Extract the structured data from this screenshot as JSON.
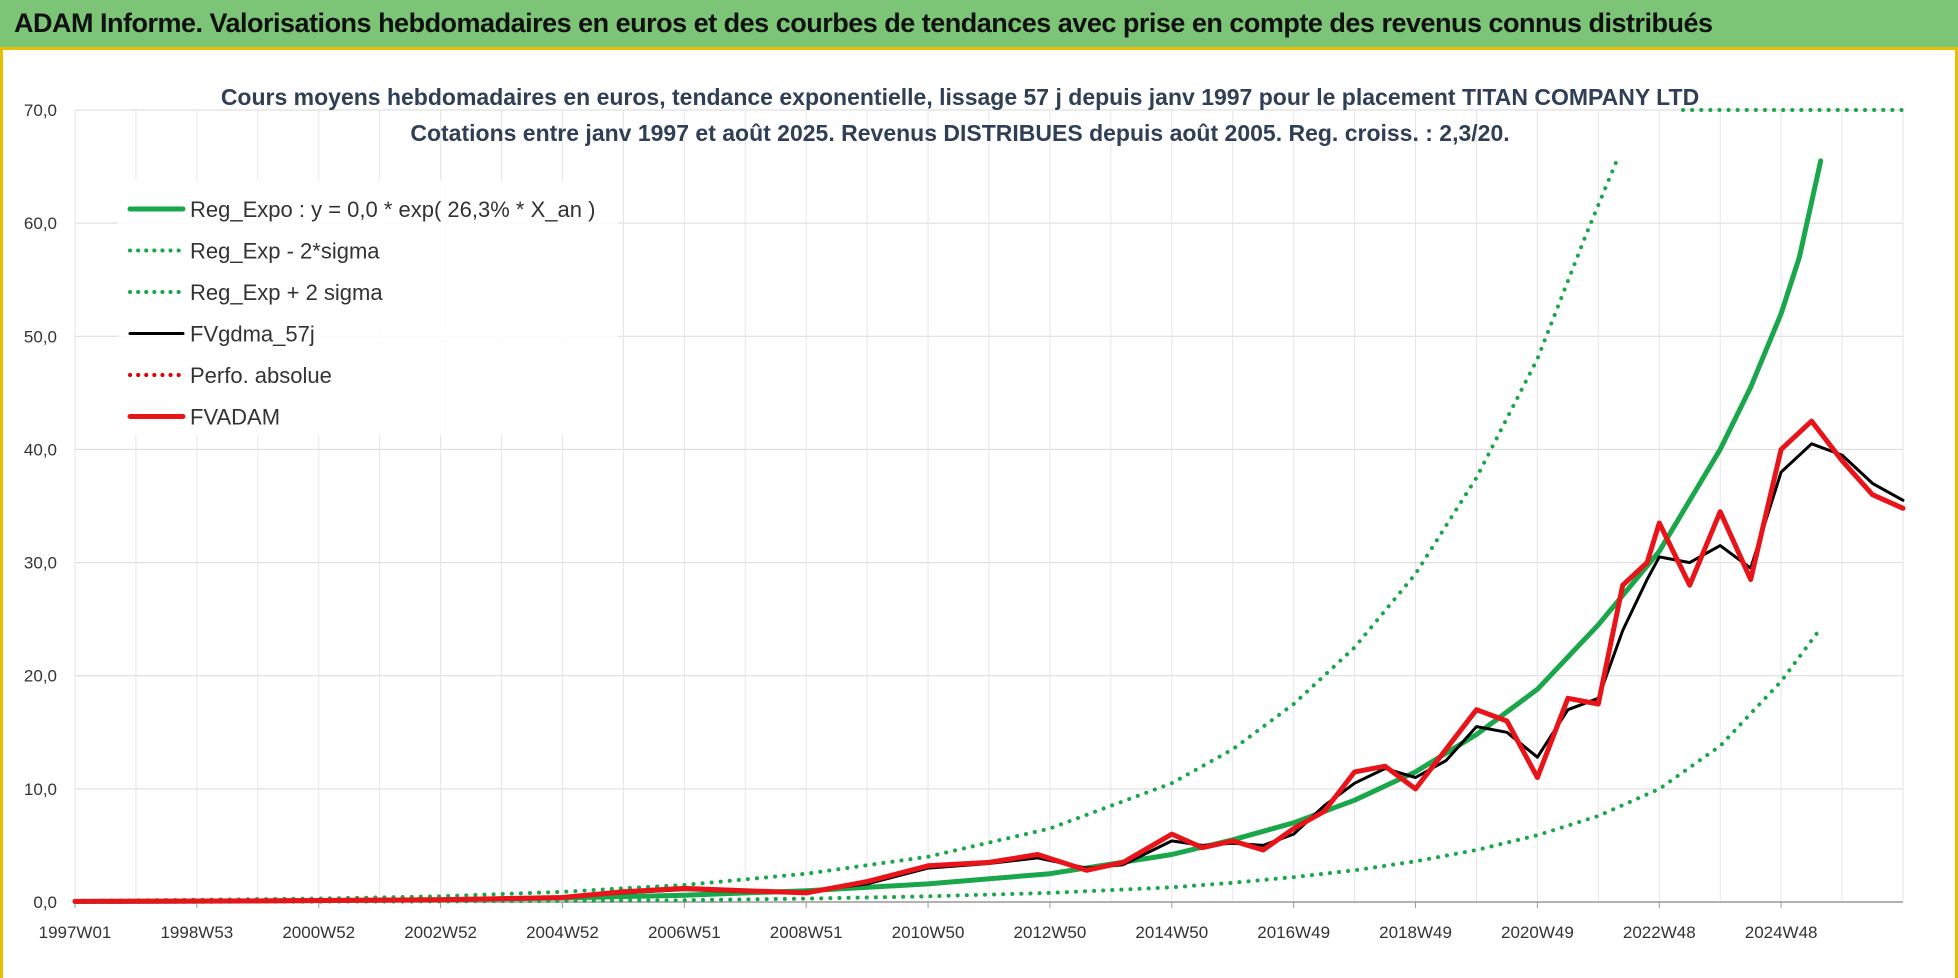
{
  "header": {
    "title": "ADAM Informe. Valorisations hebdomadaires en euros et des courbes de tendances avec prise en compte des revenus connus distribués"
  },
  "chart_data": {
    "type": "line",
    "title_line1": "Cours moyens hebdomadaires en euros, tendance exponentielle, lissage 57 j depuis janv 1997 pour le placement TITAN COMPANY LTD",
    "title_line2": "Cotations entre janv 1997 et août 2025. Revenus DISTRIBUES depuis août 2005. Reg. croiss. : 2,3/20.",
    "xlabel": "",
    "ylabel": "",
    "x_range": [
      1997.0,
      2025.65
    ],
    "ylim": [
      0,
      70
    ],
    "y_ticks": [
      "0,0",
      "10,0",
      "20,0",
      "30,0",
      "40,0",
      "50,0",
      "60,0",
      "70,0"
    ],
    "x_ticks": [
      {
        "label": "1997W01",
        "x": 1997.0
      },
      {
        "label": "1998W53",
        "x": 1999.0
      },
      {
        "label": "2000W52",
        "x": 2001.0
      },
      {
        "label": "2002W52",
        "x": 2003.0
      },
      {
        "label": "2004W52",
        "x": 2005.0
      },
      {
        "label": "2006W51",
        "x": 2007.0
      },
      {
        "label": "2008W51",
        "x": 2009.0
      },
      {
        "label": "2010W50",
        "x": 2011.0
      },
      {
        "label": "2012W50",
        "x": 2013.0
      },
      {
        "label": "2014W50",
        "x": 2015.0
      },
      {
        "label": "2016W49",
        "x": 2017.0
      },
      {
        "label": "2018W49",
        "x": 2019.0
      },
      {
        "label": "2020W49",
        "x": 2021.0
      },
      {
        "label": "2022W48",
        "x": 2023.0
      },
      {
        "label": "2024W48",
        "x": 2025.0
      }
    ],
    "grid": true,
    "legend_position": "top-left",
    "series": [
      {
        "name": "Reg_Expo : y = 0,0 * exp( 26,3% *  X_an )",
        "color": "#1aa64a",
        "style": "solid-thick",
        "points": [
          [
            1997.0,
            0.04
          ],
          [
            2000.0,
            0.09
          ],
          [
            2003.0,
            0.2
          ],
          [
            2005.0,
            0.35
          ],
          [
            2007.0,
            0.6
          ],
          [
            2009.0,
            1.0
          ],
          [
            2011.0,
            1.6
          ],
          [
            2013.0,
            2.5
          ],
          [
            2015.0,
            4.2
          ],
          [
            2016.0,
            5.5
          ],
          [
            2017.0,
            7.0
          ],
          [
            2018.0,
            9.0
          ],
          [
            2019.0,
            11.5
          ],
          [
            2020.0,
            14.8
          ],
          [
            2021.0,
            18.8
          ],
          [
            2022.0,
            24.5
          ],
          [
            2023.0,
            31.0
          ],
          [
            2024.0,
            40.0
          ],
          [
            2024.5,
            45.5
          ],
          [
            2025.0,
            52.0
          ],
          [
            2025.3,
            57.0
          ],
          [
            2025.65,
            65.5
          ]
        ]
      },
      {
        "name": "Reg_Exp - 2*sigma",
        "color": "#1aa64a",
        "style": "dotted",
        "points": [
          [
            1997.0,
            0.01
          ],
          [
            2003.0,
            0.05
          ],
          [
            2007.0,
            0.15
          ],
          [
            2009.0,
            0.3
          ],
          [
            2011.0,
            0.5
          ],
          [
            2013.0,
            0.8
          ],
          [
            2015.0,
            1.3
          ],
          [
            2016.0,
            1.7
          ],
          [
            2017.0,
            2.2
          ],
          [
            2018.0,
            2.8
          ],
          [
            2019.0,
            3.6
          ],
          [
            2020.0,
            4.6
          ],
          [
            2021.0,
            5.9
          ],
          [
            2022.0,
            7.6
          ],
          [
            2023.0,
            10.0
          ],
          [
            2024.0,
            13.8
          ],
          [
            2025.0,
            19.5
          ],
          [
            2025.65,
            24.2
          ]
        ]
      },
      {
        "name": "Reg_Exp + 2 sigma",
        "color": "#1aa64a",
        "style": "dotted",
        "points": [
          [
            1997.0,
            0.1
          ],
          [
            2001.0,
            0.3
          ],
          [
            2003.0,
            0.5
          ],
          [
            2005.0,
            0.9
          ],
          [
            2007.0,
            1.5
          ],
          [
            2009.0,
            2.5
          ],
          [
            2011.0,
            4.0
          ],
          [
            2013.0,
            6.5
          ],
          [
            2015.0,
            10.5
          ],
          [
            2016.0,
            13.5
          ],
          [
            2017.0,
            17.5
          ],
          [
            2018.0,
            22.5
          ],
          [
            2019.0,
            29.0
          ],
          [
            2020.0,
            37.5
          ],
          [
            2021.0,
            48.0
          ],
          [
            2021.8,
            59.0
          ],
          [
            2022.3,
            65.5
          ]
        ]
      },
      {
        "name": "FVgdma_57j",
        "color": "#000000",
        "style": "solid",
        "points": [
          [
            1997.0,
            0.05
          ],
          [
            2000.0,
            0.1
          ],
          [
            2003.0,
            0.2
          ],
          [
            2005.0,
            0.4
          ],
          [
            2006.0,
            0.8
          ],
          [
            2007.0,
            1.1
          ],
          [
            2008.0,
            0.9
          ],
          [
            2009.0,
            0.9
          ],
          [
            2010.0,
            1.6
          ],
          [
            2011.0,
            3.0
          ],
          [
            2012.0,
            3.4
          ],
          [
            2012.8,
            3.9
          ],
          [
            2013.6,
            3.0
          ],
          [
            2014.2,
            3.3
          ],
          [
            2015.0,
            5.4
          ],
          [
            2015.5,
            5.0
          ],
          [
            2016.0,
            5.2
          ],
          [
            2016.5,
            5.0
          ],
          [
            2017.0,
            6.0
          ],
          [
            2017.5,
            8.5
          ],
          [
            2018.0,
            10.5
          ],
          [
            2018.5,
            11.8
          ],
          [
            2019.0,
            11.0
          ],
          [
            2019.5,
            12.5
          ],
          [
            2020.0,
            15.5
          ],
          [
            2020.5,
            15.0
          ],
          [
            2021.0,
            12.8
          ],
          [
            2021.5,
            17.0
          ],
          [
            2022.0,
            18.0
          ],
          [
            2022.4,
            24.0
          ],
          [
            2022.8,
            28.5
          ],
          [
            2023.0,
            30.5
          ],
          [
            2023.5,
            30.0
          ],
          [
            2024.0,
            31.5
          ],
          [
            2024.5,
            29.5
          ],
          [
            2025.0,
            38.0
          ],
          [
            2025.5,
            40.5
          ],
          [
            2026.0,
            39.5
          ],
          [
            2026.5,
            37.0
          ],
          [
            2027.0,
            35.5
          ]
        ]
      },
      {
        "name": "Perfo. absolue",
        "color": "#e00000",
        "style": "dotted",
        "points": []
      },
      {
        "name": "FVADAM",
        "color": "#e8141a",
        "style": "solid-thick",
        "points": [
          [
            1997.0,
            0.05
          ],
          [
            2000.0,
            0.1
          ],
          [
            2003.0,
            0.2
          ],
          [
            2005.0,
            0.4
          ],
          [
            2006.0,
            0.9
          ],
          [
            2007.0,
            1.2
          ],
          [
            2008.0,
            1.0
          ],
          [
            2009.0,
            0.8
          ],
          [
            2010.0,
            1.8
          ],
          [
            2011.0,
            3.2
          ],
          [
            2012.0,
            3.5
          ],
          [
            2012.8,
            4.2
          ],
          [
            2013.6,
            2.8
          ],
          [
            2014.2,
            3.5
          ],
          [
            2015.0,
            6.0
          ],
          [
            2015.5,
            4.8
          ],
          [
            2016.0,
            5.4
          ],
          [
            2016.5,
            4.6
          ],
          [
            2017.0,
            6.5
          ],
          [
            2017.5,
            8.0
          ],
          [
            2018.0,
            11.5
          ],
          [
            2018.5,
            12.0
          ],
          [
            2019.0,
            10.0
          ],
          [
            2019.5,
            13.5
          ],
          [
            2020.0,
            17.0
          ],
          [
            2020.5,
            16.0
          ],
          [
            2021.0,
            11.0
          ],
          [
            2021.5,
            18.0
          ],
          [
            2022.0,
            17.5
          ],
          [
            2022.4,
            28.0
          ],
          [
            2022.8,
            30.0
          ],
          [
            2023.0,
            33.5
          ],
          [
            2023.5,
            28.0
          ],
          [
            2024.0,
            34.5
          ],
          [
            2024.5,
            28.5
          ],
          [
            2025.0,
            40.0
          ],
          [
            2025.5,
            42.5
          ],
          [
            2026.0,
            39.0
          ],
          [
            2026.5,
            36.0
          ],
          [
            2027.0,
            34.8
          ]
        ]
      }
    ]
  }
}
